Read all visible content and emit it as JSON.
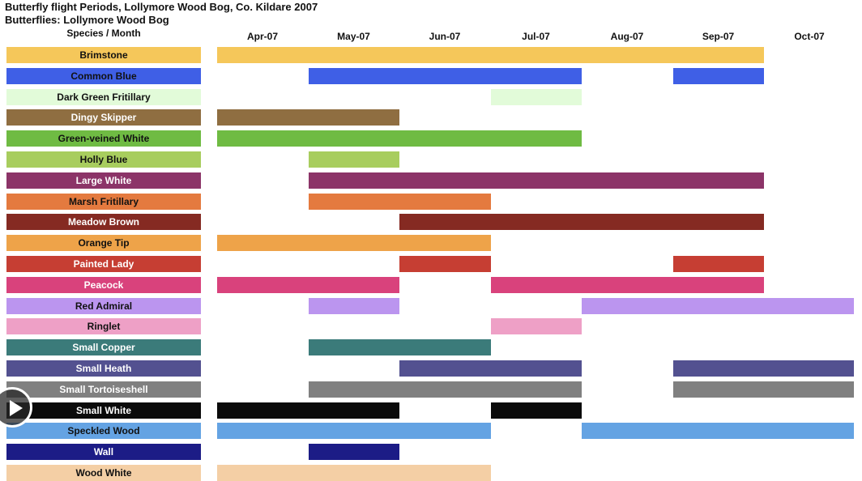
{
  "title_line1": "Butterfly flight Periods, Lollymore Wood Bog, Co. Kildare 2007",
  "title_line2": "Butterflies: Lollymore Wood Bog",
  "chart_data": {
    "type": "gantt",
    "column_header": "Species / Month",
    "months": [
      "Apr-07",
      "May-07",
      "Jun-07",
      "Jul-07",
      "Aug-07",
      "Sep-07",
      "Oct-07"
    ],
    "species": [
      {
        "name": "Brimstone",
        "color": "#f5c75a",
        "text_color": "#111111",
        "periods": [
          [
            0,
            6
          ]
        ]
      },
      {
        "name": "Common Blue",
        "color": "#3f5fe6",
        "text_color": "#111111",
        "periods": [
          [
            1,
            4
          ],
          [
            5,
            6
          ]
        ]
      },
      {
        "name": "Dark Green Fritillary",
        "color": "#e2fbd9",
        "text_color": "#111111",
        "periods": [
          [
            3,
            4
          ]
        ]
      },
      {
        "name": "Dingy Skipper",
        "color": "#8f6e41",
        "text_color": "#ffffff",
        "periods": [
          [
            0,
            2
          ]
        ]
      },
      {
        "name": "Green-veined White",
        "color": "#6fbb43",
        "text_color": "#111111",
        "periods": [
          [
            0,
            4
          ]
        ]
      },
      {
        "name": "Holly Blue",
        "color": "#a8cd5e",
        "text_color": "#111111",
        "periods": [
          [
            1,
            2
          ]
        ]
      },
      {
        "name": "Large White",
        "color": "#8c3468",
        "text_color": "#ffffff",
        "periods": [
          [
            1,
            6
          ]
        ]
      },
      {
        "name": "Marsh Fritillary",
        "color": "#e47a3f",
        "text_color": "#111111",
        "periods": [
          [
            1,
            3
          ]
        ]
      },
      {
        "name": "Meadow Brown",
        "color": "#852a22",
        "text_color": "#ffffff",
        "periods": [
          [
            2,
            6
          ]
        ]
      },
      {
        "name": "Orange Tip",
        "color": "#eea349",
        "text_color": "#111111",
        "periods": [
          [
            0,
            3
          ]
        ]
      },
      {
        "name": "Painted Lady",
        "color": "#c63e33",
        "text_color": "#ffffff",
        "periods": [
          [
            2,
            3
          ],
          [
            5,
            6
          ]
        ]
      },
      {
        "name": "Peacock",
        "color": "#d9427c",
        "text_color": "#ffffff",
        "periods": [
          [
            0,
            2
          ],
          [
            3,
            6
          ]
        ]
      },
      {
        "name": "Red Admiral",
        "color": "#bb95ef",
        "text_color": "#111111",
        "periods": [
          [
            1,
            2
          ],
          [
            4,
            7
          ]
        ]
      },
      {
        "name": "Ringlet",
        "color": "#eea0c6",
        "text_color": "#111111",
        "periods": [
          [
            3,
            4
          ]
        ]
      },
      {
        "name": "Small Copper",
        "color": "#3b7b7a",
        "text_color": "#ffffff",
        "periods": [
          [
            1,
            3
          ]
        ]
      },
      {
        "name": "Small Heath",
        "color": "#535190",
        "text_color": "#ffffff",
        "periods": [
          [
            2,
            4
          ],
          [
            5,
            7
          ]
        ]
      },
      {
        "name": "Small Tortoiseshell",
        "color": "#808080",
        "text_color": "#ffffff",
        "periods": [
          [
            1,
            4
          ],
          [
            5,
            7
          ]
        ]
      },
      {
        "name": "Small White",
        "color": "#0b0b0b",
        "text_color": "#ffffff",
        "periods": [
          [
            0,
            2
          ],
          [
            3,
            4
          ]
        ]
      },
      {
        "name": "Speckled Wood",
        "color": "#64a3e3",
        "text_color": "#111111",
        "periods": [
          [
            0,
            3
          ],
          [
            4,
            7
          ]
        ]
      },
      {
        "name": "Wall",
        "color": "#1c1c86",
        "text_color": "#ffffff",
        "periods": [
          [
            1,
            2
          ]
        ]
      },
      {
        "name": "Wood White",
        "color": "#f4cfa5",
        "text_color": "#111111",
        "periods": [
          [
            0,
            3
          ]
        ]
      }
    ]
  }
}
